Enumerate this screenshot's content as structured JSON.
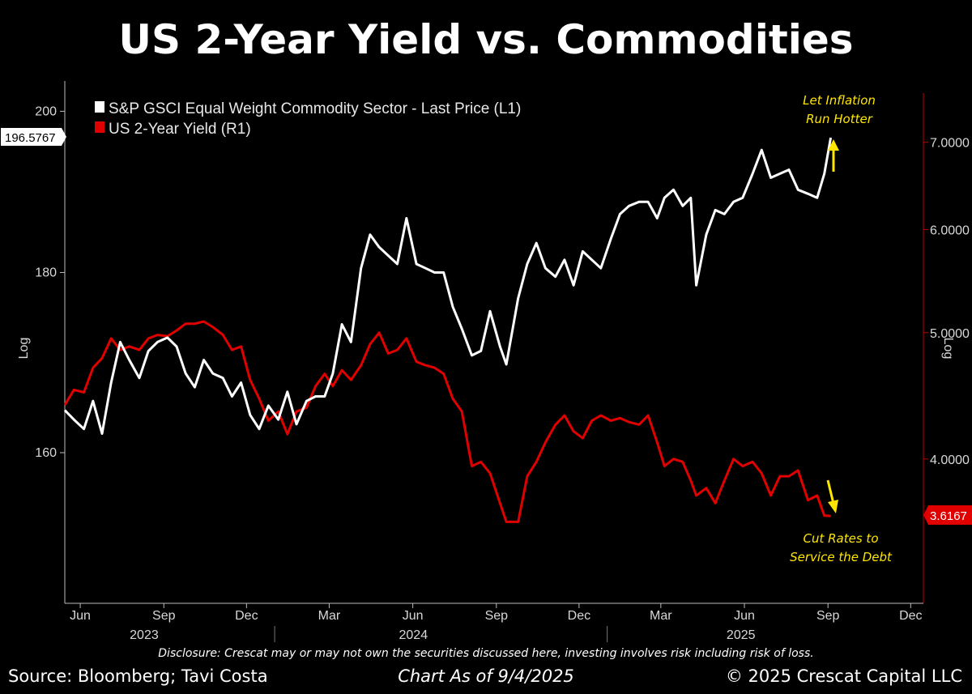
{
  "title": "US 2-Year Yield vs. Commodities",
  "footer": {
    "disclosure": "Disclosure: Crescat may or may not own the securities discussed here, investing involves risk including risk of loss.",
    "source": "Source: Bloomberg; Tavi Costa",
    "as_of": "Chart As of 9/4/2025",
    "copyright": "© 2025 Crescat Capital LLC"
  },
  "colors": {
    "background": "#000000",
    "commodity_series": "#ffffff",
    "yield_series": "#e00000",
    "annotation": "#ffe600"
  },
  "chart_data": {
    "type": "line",
    "left_axis": {
      "scale": "log",
      "label": "Log",
      "ticks": [
        160,
        180,
        200
      ],
      "tick_labels": [
        "160",
        "180",
        "200"
      ],
      "range": [
        145,
        204
      ]
    },
    "right_axis": {
      "scale": "log",
      "label": "Log",
      "ticks": [
        4,
        5,
        6,
        7
      ],
      "tick_labels": [
        "4.0000",
        "5.0000",
        "6.0000",
        "7.0000"
      ],
      "range": [
        3.1,
        7.8
      ]
    },
    "x_axis": {
      "month_labels": [
        "Jun",
        "Sep",
        "Dec",
        "Mar",
        "Jun",
        "Sep",
        "Dec",
        "Mar",
        "Jun",
        "Sep",
        "Dec"
      ],
      "month_dates": [
        "2023-06",
        "2023-09",
        "2023-12",
        "2024-03",
        "2024-06",
        "2024-09",
        "2024-12",
        "2025-03",
        "2025-06",
        "2025-09",
        "2025-12"
      ],
      "year_labels": [
        "2023",
        "2024",
        "2025"
      ],
      "range": [
        "2023-05-15",
        "2025-12-15"
      ]
    },
    "legend_position": "top-left",
    "series": [
      {
        "name": "S&P GSCI Equal Weight Commodity Sector - Last Price (L1)",
        "axis": "left",
        "last_value": "196.5767",
        "points": [
          [
            "2023-05-15",
            164.5
          ],
          [
            "2023-05-25",
            163.5
          ],
          [
            "2023-06-05",
            162.5
          ],
          [
            "2023-06-15",
            165.5
          ],
          [
            "2023-06-25",
            162.0
          ],
          [
            "2023-07-05",
            167.5
          ],
          [
            "2023-07-15",
            172.0
          ],
          [
            "2023-07-25",
            170.0
          ],
          [
            "2023-08-05",
            168.0
          ],
          [
            "2023-08-15",
            171.0
          ],
          [
            "2023-08-25",
            172.0
          ],
          [
            "2023-09-05",
            172.5
          ],
          [
            "2023-09-15",
            171.5
          ],
          [
            "2023-09-25",
            168.5
          ],
          [
            "2023-10-05",
            167.0
          ],
          [
            "2023-10-15",
            170.0
          ],
          [
            "2023-10-25",
            168.5
          ],
          [
            "2023-11-05",
            168.0
          ],
          [
            "2023-11-15",
            166.0
          ],
          [
            "2023-11-25",
            167.5
          ],
          [
            "2023-12-05",
            164.0
          ],
          [
            "2023-12-15",
            162.5
          ],
          [
            "2023-12-25",
            165.0
          ],
          [
            "2024-01-05",
            163.5
          ],
          [
            "2024-01-15",
            166.5
          ],
          [
            "2024-01-25",
            163.0
          ],
          [
            "2024-02-05",
            165.5
          ],
          [
            "2024-02-15",
            166.0
          ],
          [
            "2024-02-25",
            166.0
          ],
          [
            "2024-03-05",
            168.5
          ],
          [
            "2024-03-15",
            174.0
          ],
          [
            "2024-03-25",
            172.0
          ],
          [
            "2024-04-05",
            180.5
          ],
          [
            "2024-04-15",
            184.5
          ],
          [
            "2024-04-25",
            183.0
          ],
          [
            "2024-05-05",
            182.0
          ],
          [
            "2024-05-15",
            181.0
          ],
          [
            "2024-05-25",
            186.5
          ],
          [
            "2024-06-05",
            181.0
          ],
          [
            "2024-06-15",
            180.5
          ],
          [
            "2024-06-25",
            180.0
          ],
          [
            "2024-07-05",
            180.0
          ],
          [
            "2024-07-15",
            176.0
          ],
          [
            "2024-07-25",
            173.5
          ],
          [
            "2024-08-05",
            170.5
          ],
          [
            "2024-08-15",
            171.0
          ],
          [
            "2024-08-25",
            175.5
          ],
          [
            "2024-09-05",
            171.5
          ],
          [
            "2024-09-12",
            169.5
          ],
          [
            "2024-09-25",
            177.0
          ],
          [
            "2024-10-05",
            181.0
          ],
          [
            "2024-10-15",
            183.5
          ],
          [
            "2024-10-25",
            180.5
          ],
          [
            "2024-11-05",
            179.5
          ],
          [
            "2024-11-15",
            181.5
          ],
          [
            "2024-11-25",
            178.5
          ],
          [
            "2024-12-05",
            182.5
          ],
          [
            "2024-12-15",
            181.5
          ],
          [
            "2024-12-25",
            180.5
          ],
          [
            "2025-01-05",
            184.0
          ],
          [
            "2025-01-15",
            187.0
          ],
          [
            "2025-01-25",
            188.0
          ],
          [
            "2025-02-05",
            188.5
          ],
          [
            "2025-02-15",
            188.5
          ],
          [
            "2025-02-25",
            186.5
          ],
          [
            "2025-03-05",
            189.0
          ],
          [
            "2025-03-15",
            190.0
          ],
          [
            "2025-03-25",
            188.0
          ],
          [
            "2025-04-03",
            189.0
          ],
          [
            "2025-04-09",
            178.5
          ],
          [
            "2025-04-20",
            184.5
          ],
          [
            "2025-04-30",
            187.5
          ],
          [
            "2025-05-10",
            187.0
          ],
          [
            "2025-05-20",
            188.5
          ],
          [
            "2025-05-30",
            189.0
          ],
          [
            "2025-06-10",
            192.0
          ],
          [
            "2025-06-20",
            195.0
          ],
          [
            "2025-06-30",
            191.5
          ],
          [
            "2025-07-10",
            192.0
          ],
          [
            "2025-07-20",
            192.5
          ],
          [
            "2025-07-30",
            190.0
          ],
          [
            "2025-08-10",
            189.5
          ],
          [
            "2025-08-20",
            189.0
          ],
          [
            "2025-08-28",
            192.0
          ],
          [
            "2025-09-04",
            196.5767
          ]
        ]
      },
      {
        "name": "US 2-Year Yield (R1)",
        "axis": "right",
        "last_value": "3.6167",
        "points": [
          [
            "2023-05-15",
            4.4
          ],
          [
            "2023-05-25",
            4.52
          ],
          [
            "2023-06-05",
            4.5
          ],
          [
            "2023-06-15",
            4.7
          ],
          [
            "2023-06-25",
            4.78
          ],
          [
            "2023-07-05",
            4.95
          ],
          [
            "2023-07-15",
            4.85
          ],
          [
            "2023-07-25",
            4.88
          ],
          [
            "2023-08-05",
            4.85
          ],
          [
            "2023-08-15",
            4.95
          ],
          [
            "2023-08-25",
            4.98
          ],
          [
            "2023-09-05",
            4.97
          ],
          [
            "2023-09-15",
            5.02
          ],
          [
            "2023-09-25",
            5.08
          ],
          [
            "2023-10-05",
            5.08
          ],
          [
            "2023-10-15",
            5.1
          ],
          [
            "2023-10-25",
            5.05
          ],
          [
            "2023-11-05",
            4.98
          ],
          [
            "2023-11-15",
            4.85
          ],
          [
            "2023-11-25",
            4.88
          ],
          [
            "2023-12-05",
            4.6
          ],
          [
            "2023-12-15",
            4.45
          ],
          [
            "2023-12-25",
            4.28
          ],
          [
            "2024-01-05",
            4.35
          ],
          [
            "2024-01-15",
            4.18
          ],
          [
            "2024-01-25",
            4.35
          ],
          [
            "2024-02-05",
            4.38
          ],
          [
            "2024-02-15",
            4.55
          ],
          [
            "2024-02-25",
            4.65
          ],
          [
            "2024-03-05",
            4.55
          ],
          [
            "2024-03-15",
            4.68
          ],
          [
            "2024-03-25",
            4.6
          ],
          [
            "2024-04-05",
            4.72
          ],
          [
            "2024-04-15",
            4.9
          ],
          [
            "2024-04-25",
            5.0
          ],
          [
            "2024-05-05",
            4.82
          ],
          [
            "2024-05-15",
            4.85
          ],
          [
            "2024-05-25",
            4.95
          ],
          [
            "2024-06-05",
            4.75
          ],
          [
            "2024-06-15",
            4.72
          ],
          [
            "2024-06-25",
            4.7
          ],
          [
            "2024-07-05",
            4.65
          ],
          [
            "2024-07-15",
            4.45
          ],
          [
            "2024-07-25",
            4.35
          ],
          [
            "2024-08-05",
            3.95
          ],
          [
            "2024-08-15",
            3.98
          ],
          [
            "2024-08-25",
            3.9
          ],
          [
            "2024-09-05",
            3.7
          ],
          [
            "2024-09-12",
            3.58
          ],
          [
            "2024-09-25",
            3.58
          ],
          [
            "2024-10-05",
            3.88
          ],
          [
            "2024-10-15",
            3.98
          ],
          [
            "2024-10-25",
            4.12
          ],
          [
            "2024-11-05",
            4.25
          ],
          [
            "2024-11-15",
            4.32
          ],
          [
            "2024-11-25",
            4.2
          ],
          [
            "2024-12-05",
            4.15
          ],
          [
            "2024-12-15",
            4.28
          ],
          [
            "2024-12-25",
            4.32
          ],
          [
            "2025-01-05",
            4.28
          ],
          [
            "2025-01-15",
            4.3
          ],
          [
            "2025-01-25",
            4.27
          ],
          [
            "2025-02-05",
            4.25
          ],
          [
            "2025-02-15",
            4.32
          ],
          [
            "2025-02-25",
            4.12
          ],
          [
            "2025-03-05",
            3.95
          ],
          [
            "2025-03-15",
            4.0
          ],
          [
            "2025-03-25",
            3.98
          ],
          [
            "2025-04-03",
            3.85
          ],
          [
            "2025-04-09",
            3.75
          ],
          [
            "2025-04-20",
            3.8
          ],
          [
            "2025-04-30",
            3.7
          ],
          [
            "2025-05-10",
            3.85
          ],
          [
            "2025-05-20",
            4.0
          ],
          [
            "2025-05-30",
            3.95
          ],
          [
            "2025-06-10",
            3.98
          ],
          [
            "2025-06-20",
            3.9
          ],
          [
            "2025-06-30",
            3.75
          ],
          [
            "2025-07-10",
            3.88
          ],
          [
            "2025-07-20",
            3.88
          ],
          [
            "2025-07-30",
            3.92
          ],
          [
            "2025-08-10",
            3.72
          ],
          [
            "2025-08-20",
            3.75
          ],
          [
            "2025-08-28",
            3.62
          ],
          [
            "2025-09-04",
            3.6167
          ]
        ]
      }
    ],
    "annotations": [
      {
        "text_lines": [
          "Let Inflation",
          "Run Hotter"
        ],
        "arrow": "up"
      },
      {
        "text_lines": [
          "Cut Rates to",
          "Service the Debt"
        ],
        "arrow": "down"
      }
    ]
  }
}
